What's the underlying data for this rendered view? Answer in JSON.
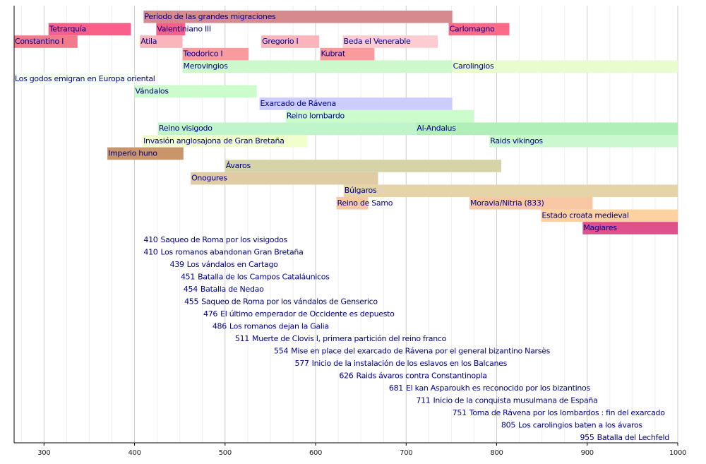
{
  "chart_data": {
    "type": "timeline",
    "xlim": [
      267,
      1000
    ],
    "xticks": [
      300,
      400,
      500,
      600,
      700,
      800,
      900,
      1000
    ],
    "minor_xticks": [
      275,
      325,
      350,
      375,
      425,
      450,
      475,
      525,
      550,
      575,
      625,
      650,
      675,
      725,
      750,
      775,
      825,
      850,
      875,
      925,
      950,
      975
    ],
    "rows": [
      [
        {
          "label": "Período de las grandes migraciones",
          "start": 410,
          "end": 751,
          "color": "#d68a8e"
        }
      ],
      [
        {
          "label": "Tetrarquía",
          "start": 305,
          "end": 396,
          "color": "#f8608a"
        },
        {
          "label": "Valentiniano III",
          "start": 424,
          "end": 456,
          "color": "#f8608a"
        },
        {
          "label": "Carlomagno",
          "start": 747,
          "end": 814,
          "color": "#fb6a88"
        }
      ],
      [
        {
          "label": "Constantino I",
          "start": 267,
          "end": 337,
          "color": "#f37a8a"
        },
        {
          "label": "Atila",
          "start": 406,
          "end": 453,
          "color": "#f9b4bc"
        },
        {
          "label": "Gregorio I",
          "start": 540,
          "end": 604,
          "color": "#f9b4bc"
        },
        {
          "label": "Beda el Venerable",
          "start": 630,
          "end": 735,
          "color": "#fcccd2"
        }
      ],
      [
        {
          "label": "Teodorico I",
          "start": 453,
          "end": 526,
          "color": "#fb9a9e"
        },
        {
          "label": "Kubrat",
          "start": 605,
          "end": 665,
          "color": "#fb9a9e"
        }
      ],
      [
        {
          "label": "Merovingios",
          "start": 453,
          "end": 751,
          "color": "#ccf8cc"
        },
        {
          "label": "Carolingios",
          "start": 751,
          "end": 1000,
          "color": "#e8fcd0"
        }
      ],
      [
        {
          "label": "Los godos emigran en Europa oriental",
          "start": 267,
          "end": 400,
          "color": "#f6fff6"
        }
      ],
      [
        {
          "label": "Vándalos",
          "start": 400,
          "end": 535,
          "color": "#ccfccc"
        }
      ],
      [
        {
          "label": "Exarcado de Rávena",
          "start": 538,
          "end": 751,
          "color": "#ccccff"
        }
      ],
      [
        {
          "label": "Reino lombardo",
          "start": 567,
          "end": 775,
          "color": "#ccfccc"
        }
      ],
      [
        {
          "label": "Reino visigodo",
          "start": 426,
          "end": 711,
          "color": "#c0f5cc"
        },
        {
          "label": "Al-Andalus",
          "start": 711,
          "end": 1000,
          "color": "#b0f0b8"
        }
      ],
      [
        {
          "label": "Invasión anglosajona de Gran Bretaña",
          "start": 409,
          "end": 591,
          "color": "#f0ffcc"
        },
        {
          "label": "Raids vikingos",
          "start": 792,
          "end": 1000,
          "color": "#ccf8d0"
        }
      ],
      [
        {
          "label": "Imperio huno",
          "start": 370,
          "end": 454,
          "color": "#c8966a"
        }
      ],
      [
        {
          "label": "Ávaros",
          "start": 500,
          "end": 805,
          "color": "#d4d4a8"
        }
      ],
      [
        {
          "label": "Onogures",
          "start": 462,
          "end": 669,
          "color": "#e0cca4"
        }
      ],
      [
        {
          "label": "Búlgaros",
          "start": 631,
          "end": 1000,
          "color": "#e4d4a8"
        }
      ],
      [
        {
          "label": "Reino de Samo",
          "start": 623,
          "end": 658,
          "color": "#f8c8a4"
        },
        {
          "label": "Moravia/Nitria (833)",
          "start": 770,
          "end": 906,
          "color": "#f8c8a4"
        }
      ],
      [
        {
          "label": "Estado croata medieval",
          "start": 849,
          "end": 1000,
          "color": "#ffd0a0"
        }
      ],
      [
        {
          "label": "Magiares",
          "start": 895,
          "end": 1000,
          "color": "#e0508c"
        }
      ]
    ],
    "events": [
      {
        "year": 410,
        "text": "Saqueo de Roma por los visigodos"
      },
      {
        "year": 410,
        "text": "Los romanos abandonan Gran Bretaña"
      },
      {
        "year": 439,
        "text": "Los vándalos en Cartago"
      },
      {
        "year": 451,
        "text": "Batalla de los Campos Cataláunicos"
      },
      {
        "year": 454,
        "text": "Batalla de Nedao"
      },
      {
        "year": 455,
        "text": "Saqueo de Roma por los vándalos de Genserico"
      },
      {
        "year": 476,
        "text": "El último emperador de Occidente es depuesto"
      },
      {
        "year": 486,
        "text": "Los romanos dejan la Galia"
      },
      {
        "year": 511,
        "text": "Muerte de Clovis I, primera partición del reino franco"
      },
      {
        "year": 554,
        "text": "Mise en place del exarcado de Rávena por el general bizantino Narsès"
      },
      {
        "year": 577,
        "text": "Inicio de la instalación de los eslavos en los Balcanes"
      },
      {
        "year": 626,
        "text": "Raids ávaros contra Constantinopla"
      },
      {
        "year": 681,
        "text": "El kan Asparoukh es reconocido por los bizantinos"
      },
      {
        "year": 711,
        "text": "Inicio de la conquista musulmana de España"
      },
      {
        "year": 751,
        "text": "Toma de Rávena por los lombardos : fin del exarcado"
      },
      {
        "year": 805,
        "text": "Los carolingios baten a los ávaros"
      },
      {
        "year": 955,
        "text": "Batalla del Lechfeld"
      }
    ]
  }
}
